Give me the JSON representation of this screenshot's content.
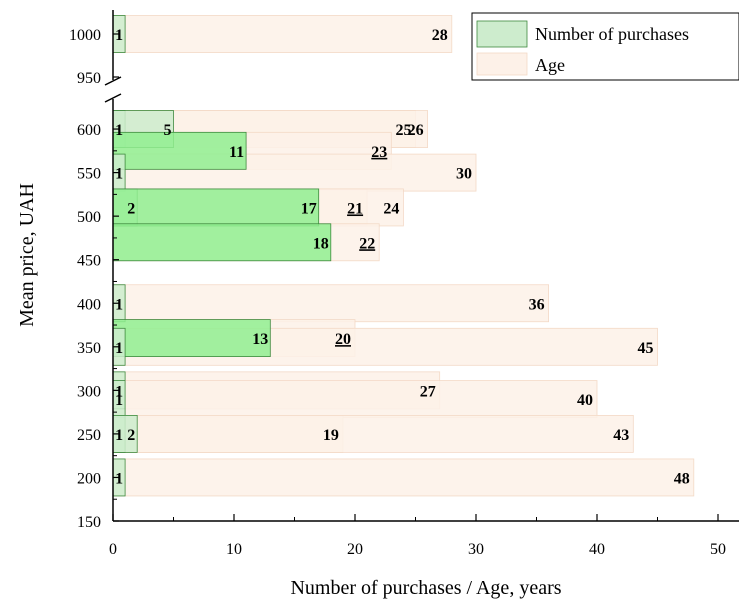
{
  "chart_data": {
    "type": "bar",
    "orientation": "horizontal",
    "xlabel": "Number of purchases / Age, years",
    "ylabel": "Mean price, UAH",
    "xlim": [
      0,
      50
    ],
    "ylim": [
      150,
      1000
    ],
    "axis_break": [
      950,
      1000
    ],
    "x_ticks": [
      "0",
      "10",
      "20",
      "30",
      "40",
      "50"
    ],
    "y_ticks": [
      "150",
      "200",
      "250",
      "300",
      "350",
      "400",
      "450",
      "500",
      "550",
      "600",
      "950",
      "1000"
    ],
    "legend": {
      "position": "top-right",
      "items": [
        {
          "label": "Number of purchases",
          "color": "#cdeccd"
        },
        {
          "label": "Age",
          "color": "#fdf1e8"
        }
      ]
    },
    "colors": {
      "purchases_strong": "#90ee90",
      "purchases_soft": "#cdeccd",
      "age": "#fdf1e8",
      "age_edge": "#f3d9c6",
      "purchases_edge": "#3e8a3e"
    },
    "series": [
      {
        "name": "Number of purchases",
        "points": [
          {
            "price": 1000,
            "value": 1,
            "label": "1",
            "strong": false
          },
          {
            "price": 600,
            "value": 1,
            "label": "1",
            "strong": false
          },
          {
            "price": 600,
            "value": 5,
            "label": "5",
            "strong": false
          },
          {
            "price": 575,
            "value": 11,
            "label": "11",
            "strong": true
          },
          {
            "price": 550,
            "value": 1,
            "label": "1",
            "strong": false
          },
          {
            "price": 510,
            "value": 2,
            "label": "2",
            "strong": false
          },
          {
            "price": 510,
            "value": 17,
            "label": "17",
            "strong": true
          },
          {
            "price": 470,
            "value": 18,
            "label": "18",
            "strong": true
          },
          {
            "price": 400,
            "value": 1,
            "label": "1",
            "strong": false
          },
          {
            "price": 360,
            "value": 13,
            "label": "13",
            "strong": true
          },
          {
            "price": 350,
            "value": 1,
            "label": "1",
            "strong": false
          },
          {
            "price": 300,
            "value": 1,
            "label": "1",
            "strong": false
          },
          {
            "price": 290,
            "value": 1,
            "label": "1",
            "strong": false
          },
          {
            "price": 250,
            "value": 1,
            "label": "1",
            "strong": false
          },
          {
            "price": 250,
            "value": 2,
            "label": "2",
            "strong": false
          },
          {
            "price": 200,
            "value": 1,
            "label": "1",
            "strong": false
          }
        ]
      },
      {
        "name": "Age",
        "points": [
          {
            "price": 1000,
            "value": 28,
            "label": "28",
            "underline": false
          },
          {
            "price": 600,
            "value": 25,
            "label": "25",
            "underline": false
          },
          {
            "price": 600,
            "value": 26,
            "label": "26",
            "underline": false
          },
          {
            "price": 575,
            "value": 23,
            "label": "23",
            "underline": true
          },
          {
            "price": 550,
            "value": 30,
            "label": "30",
            "underline": false
          },
          {
            "price": 510,
            "value": 21,
            "label": "21",
            "underline": true
          },
          {
            "price": 510,
            "value": 24,
            "label": "24",
            "underline": false
          },
          {
            "price": 470,
            "value": 22,
            "label": "22",
            "underline": true
          },
          {
            "price": 400,
            "value": 36,
            "label": "36",
            "underline": false
          },
          {
            "price": 360,
            "value": 20,
            "label": "20",
            "underline": true
          },
          {
            "price": 350,
            "value": 45,
            "label": "45",
            "underline": false
          },
          {
            "price": 300,
            "value": 27,
            "label": "27",
            "underline": false
          },
          {
            "price": 290,
            "value": 40,
            "label": "40",
            "underline": false
          },
          {
            "price": 250,
            "value": 19,
            "label": "19",
            "underline": false
          },
          {
            "price": 250,
            "value": 43,
            "label": "43",
            "underline": false
          },
          {
            "price": 200,
            "value": 48,
            "label": "48",
            "underline": false
          }
        ]
      }
    ]
  }
}
